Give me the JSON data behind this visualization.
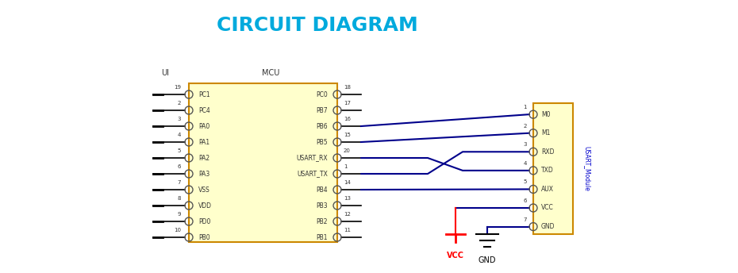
{
  "title": "CIRCUIT DIAGRAM",
  "title_color": "#00AADD",
  "title_fontsize": 18,
  "bg_color": "#FFFFFF",
  "wire_color": "#00008B",
  "box_fill": "#FFFFCC",
  "box_edge": "#CC8800",
  "pin_circle_color": "#555555",
  "text_color": "#333333",
  "vcc_color": "#FF0000",
  "gnd_color": "#333333",
  "module_label_color": "#0000CC",
  "mcu_label": "MCU",
  "ui_label": "UI",
  "fig_w": 9.3,
  "fig_h": 3.44,
  "left_pins": [
    "PC1",
    "PC4",
    "PA0",
    "PA1",
    "PA2",
    "PA3",
    "VSS",
    "VDD",
    "PD0",
    "PB0"
  ],
  "left_pin_nums": [
    "19",
    "2",
    "3",
    "4",
    "5",
    "6",
    "7",
    "8",
    "9",
    "10"
  ],
  "right_pins": [
    "PC0",
    "PB7",
    "PB6",
    "PB5",
    "USART_RX",
    "USART_TX",
    "PB4",
    "PB3",
    "PB2",
    "PB1"
  ],
  "right_pin_nums": [
    "18",
    "17",
    "16",
    "15",
    "20",
    "1",
    "14",
    "13",
    "12",
    "11"
  ],
  "mod_pins": [
    "M0",
    "M1",
    "RXD",
    "TXD",
    "AUX",
    "VCC",
    "GND"
  ],
  "mod_pin_nums": [
    "1",
    "2",
    "3",
    "4",
    "5",
    "6",
    "7"
  ]
}
